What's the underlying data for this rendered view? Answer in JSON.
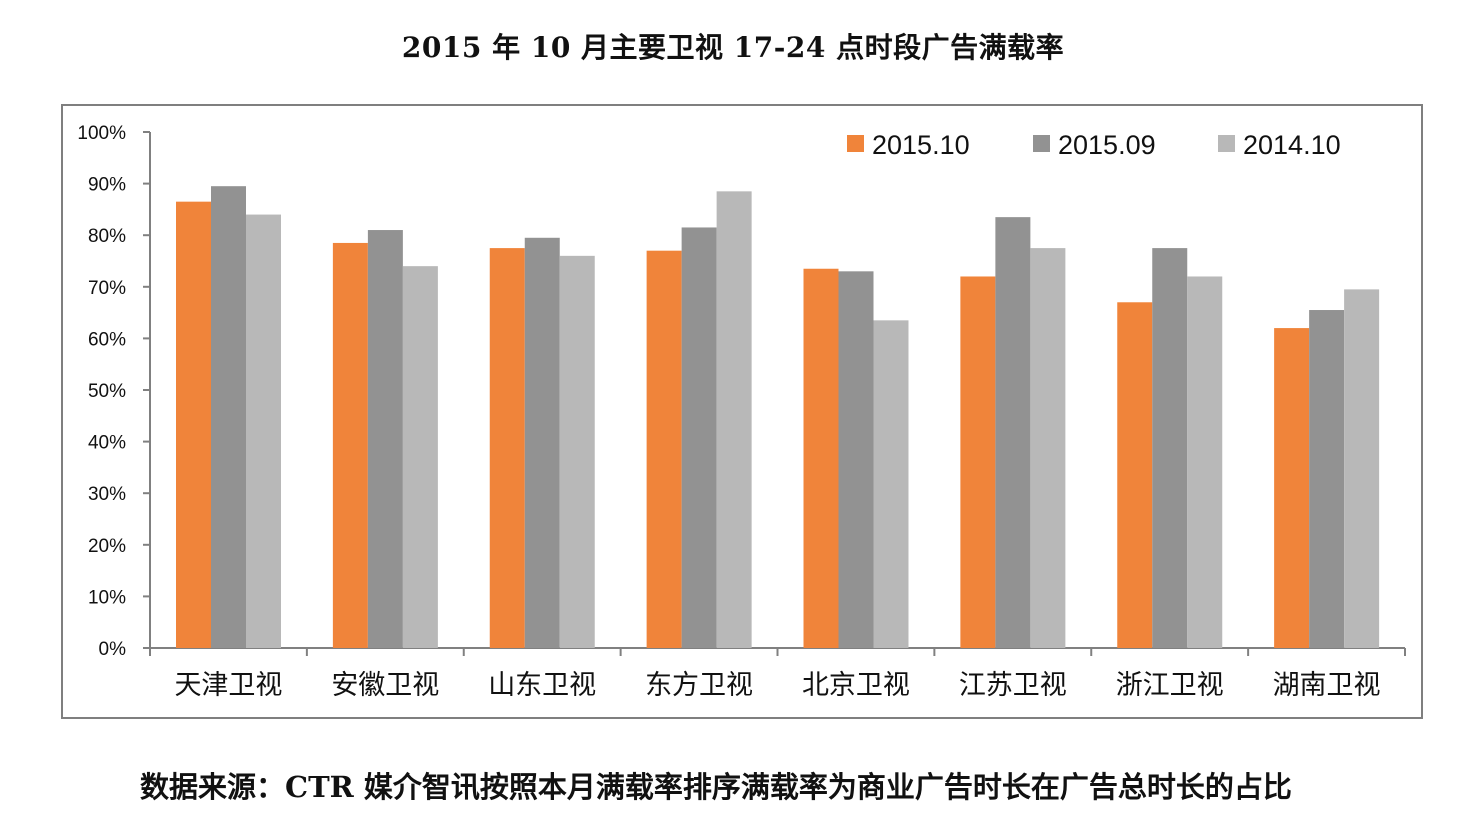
{
  "title": "2015 年 10 月主要卫视 17-24 点时段广告满载率",
  "source_note": "数据来源：CTR 媒介智讯按照本月满载率排序满载率为商业广告时长在广告总时长的占比",
  "chart_data": {
    "type": "bar",
    "title": "2015 年 10 月主要卫视 17-24 点时段广告满载率",
    "xlabel": "",
    "ylabel": "",
    "ylim": [
      0,
      100
    ],
    "y_ticks": [
      "0%",
      "10%",
      "20%",
      "30%",
      "40%",
      "50%",
      "60%",
      "70%",
      "80%",
      "90%",
      "100%"
    ],
    "grid": false,
    "legend_position": "top-right",
    "categories": [
      "天津卫视",
      "安徽卫视",
      "山东卫视",
      "东方卫视",
      "北京卫视",
      "江苏卫视",
      "浙江卫视",
      "湖南卫视"
    ],
    "series": [
      {
        "name": "2015.10",
        "color": "#f0843a",
        "values": [
          86.5,
          78.5,
          77.5,
          77,
          73.5,
          72,
          67,
          62
        ]
      },
      {
        "name": "2015.09",
        "color": "#929292",
        "values": [
          89.5,
          81,
          79.5,
          81.5,
          73,
          83.5,
          77.5,
          65.5
        ]
      },
      {
        "name": "2014.10",
        "color": "#b8b8b8",
        "values": [
          84,
          74,
          76,
          88.5,
          63.5,
          77.5,
          72,
          69.5
        ]
      }
    ]
  }
}
